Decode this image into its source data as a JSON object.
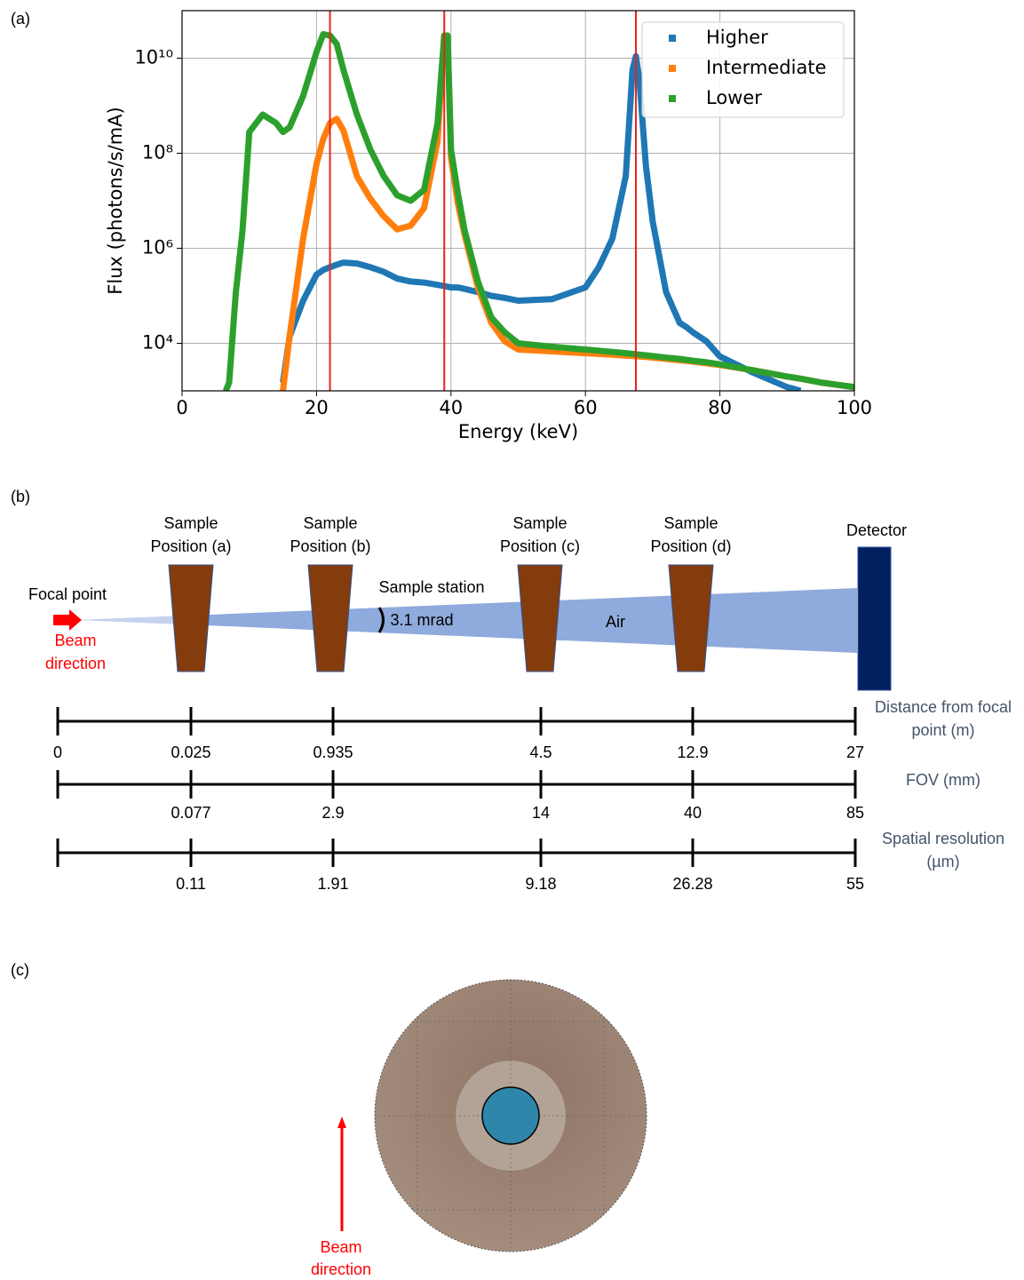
{
  "panel_labels": [
    "(a)",
    "(b)",
    "(c)"
  ],
  "chart_data": {
    "type": "line",
    "xlabel": "Energy (keV)",
    "ylabel": "Flux (photons/s/mA)",
    "log_y": true,
    "grid": true,
    "legend": "upper right",
    "xlim": [
      0,
      100
    ],
    "xticks": [
      0,
      20,
      40,
      60,
      80,
      100
    ],
    "ylim": [
      1000,
      100000000000
    ],
    "yticks": [
      {
        "value": 10000,
        "label": "10⁴"
      },
      {
        "value": 1000000,
        "label": "10⁶"
      },
      {
        "value": 100000000,
        "label": "10⁸"
      },
      {
        "value": 10000000000,
        "label": "10¹⁰"
      }
    ],
    "vlines": [
      22,
      39,
      67.5
    ],
    "vline_color": "#e8231b",
    "x": [
      6.5,
      7,
      8,
      9,
      10,
      12,
      14,
      15,
      16,
      18,
      20,
      21,
      22,
      23,
      24,
      26,
      28,
      30,
      32,
      34,
      36,
      38,
      39,
      39.5,
      40,
      41,
      42,
      44,
      46,
      48,
      50,
      55,
      60,
      62,
      64,
      66,
      67,
      67.5,
      68,
      69,
      70,
      72,
      74,
      75,
      76,
      78,
      80,
      85,
      90,
      92,
      95,
      100
    ],
    "series": [
      {
        "name": "Higher",
        "color": "#1f77b4",
        "values": [
          null,
          null,
          null,
          null,
          null,
          null,
          null,
          1500,
          14000,
          79000,
          280000,
          350000,
          400000,
          450000,
          500000,
          480000,
          400000,
          320000,
          230000,
          200000,
          190000,
          170000,
          160000,
          155000,
          150000,
          150000,
          140000,
          120000,
          100000,
          90000,
          79000,
          85000,
          150000,
          400000,
          1600000,
          33000000,
          5700000000,
          11000000000,
          3700000000,
          54000000,
          3700000,
          120000,
          27000,
          22000,
          17000,
          11000,
          5300,
          2400,
          1200,
          1000,
          null,
          null
        ]
      },
      {
        "name": "Intermediate",
        "color": "#ff7f0e",
        "values": [
          null,
          null,
          null,
          null,
          null,
          null,
          null,
          1000,
          14000,
          1600000,
          60000000,
          200000000,
          430000000,
          530000000,
          300000000,
          33000000,
          11000000,
          4700000,
          2500000,
          3000000,
          7000000,
          180000000,
          30000000000,
          30000000000,
          80000000,
          9000000,
          2000000,
          150000,
          27000,
          11000,
          7400,
          6800,
          6200,
          6000,
          5800,
          5500,
          5400,
          5350,
          5300,
          5200,
          5000,
          4700,
          4400,
          4300,
          4100,
          3800,
          3500,
          2700,
          2000,
          1800,
          1500,
          1200
        ]
      },
      {
        "name": "Lower",
        "color": "#2ca02c",
        "values": [
          1000,
          1500,
          120000,
          2400000,
          280000000,
          650000000,
          430000000,
          280000000,
          350000000,
          1600000000,
          13500000000,
          32000000000,
          30000000000,
          20000000000,
          5700000000,
          660000000,
          120000000,
          33000000,
          13000000,
          10000000,
          17000000,
          430000000,
          30000000000,
          30000000000,
          120000000,
          15000000,
          2500000,
          200000,
          35000,
          17000,
          10000,
          8500,
          7400,
          7000,
          6600,
          6200,
          6000,
          5900,
          5800,
          5600,
          5400,
          5000,
          4700,
          4500,
          4300,
          4000,
          3600,
          2700,
          2000,
          1800,
          1500,
          1200
        ]
      }
    ]
  },
  "diagram": {
    "samples": [
      {
        "lines": [
          "Sample",
          "Position (a)"
        ]
      },
      {
        "lines": [
          "Sample",
          "Position (b)"
        ]
      },
      {
        "lines": [
          "Sample",
          "Position (c)"
        ]
      },
      {
        "lines": [
          "Sample",
          "Position (d)"
        ]
      }
    ],
    "detector": "Detector",
    "focal_point": "Focal point",
    "beam_direction": [
      "Beam",
      "direction"
    ],
    "sample_station": "Sample station",
    "angle": "3.1 mrad",
    "medium": "Air",
    "scales": [
      {
        "label": [
          "Distance from focal",
          "point (m)"
        ],
        "ticks": [
          "0",
          "0.025",
          "0.935",
          "4.5",
          "12.9",
          "27"
        ]
      },
      {
        "label": [
          "FOV (mm)"
        ],
        "ticks": [
          "",
          "0.077",
          "2.9",
          "14",
          "40",
          "85"
        ]
      },
      {
        "label": [
          "Spatial resolution",
          "(µm)"
        ],
        "ticks": [
          "",
          "0.11",
          "1.91",
          "9.18",
          "26.28",
          "55"
        ]
      }
    ]
  },
  "cross_section": {
    "beam_direction": [
      "Beam",
      "direction"
    ]
  }
}
